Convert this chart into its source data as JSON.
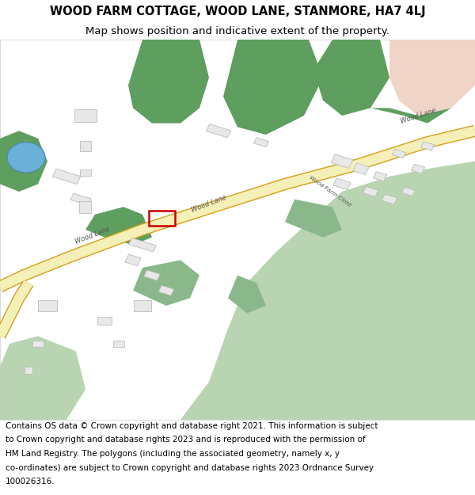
{
  "title_line1": "WOOD FARM COTTAGE, WOOD LANE, STANMORE, HA7 4LJ",
  "title_line2": "Map shows position and indicative extent of the property.",
  "footer_lines": [
    "Contains OS data © Crown copyright and database right 2021. This information is subject",
    "to Crown copyright and database rights 2023 and is reproduced with the permission of",
    "HM Land Registry. The polygons (including the associated geometry, namely x, y",
    "co-ordinates) are subject to Crown copyright and database rights 2023 Ordnance Survey",
    "100026316."
  ],
  "map_bg": "#ffffff",
  "road_fill": "#f5efb8",
  "road_border": "#d4a017",
  "green_dark": "#5e9e5e",
  "green_light": "#b8d4b0",
  "green_mid": "#8ab88a",
  "pink_area": "#f0d4c8",
  "pond_fill": "#6ab0d8",
  "pond_edge": "#4888b0",
  "bldg_fill": "#e8e8e8",
  "bldg_edge": "#bbbbbb",
  "road_line_color": "#c8a820",
  "red_box": "#cc0000",
  "label_color": "#555555",
  "title_fontsize": 10.5,
  "subtitle_fontsize": 9.5,
  "footer_fontsize": 7.5
}
